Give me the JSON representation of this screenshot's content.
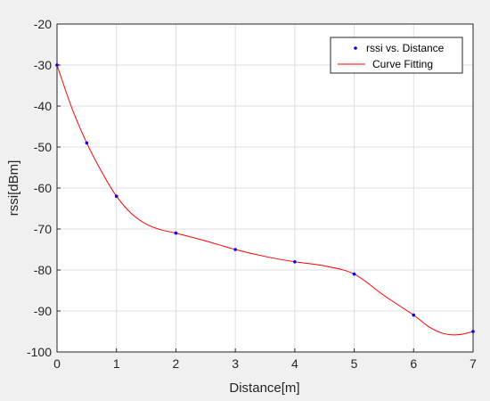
{
  "chart_data": {
    "type": "scatter",
    "xlabel": "Distance[m]",
    "ylabel": "rssi[dBm]",
    "xlim": [
      0,
      7
    ],
    "ylim": [
      -100,
      -20
    ],
    "xticks": [
      0,
      1,
      2,
      3,
      4,
      5,
      6,
      7
    ],
    "yticks": [
      -100,
      -90,
      -80,
      -70,
      -60,
      -50,
      -40,
      -30,
      -20
    ],
    "grid": true,
    "legend_position": "top-right",
    "series": [
      {
        "name": "rssi vs. Distance",
        "kind": "markers",
        "color": "#0000ff",
        "x": [
          0,
          0.5,
          1,
          2,
          3,
          4,
          5,
          6,
          7
        ],
        "y": [
          -30,
          -49,
          -62,
          -71,
          -75,
          -78,
          -81,
          -91,
          -95
        ]
      },
      {
        "name": "Curve Fitting",
        "kind": "line",
        "color": "#ff0000",
        "x": [
          0,
          0.25,
          0.5,
          0.75,
          1,
          1.25,
          1.5,
          1.75,
          2,
          2.5,
          3,
          3.5,
          4,
          4.5,
          5,
          5.5,
          6,
          6.25,
          6.5,
          6.75,
          7
        ],
        "y": [
          -30,
          -40.5,
          -49,
          -56,
          -62,
          -66.2,
          -68.8,
          -70.2,
          -71,
          -72.9,
          -75,
          -76.7,
          -78,
          -79,
          -81,
          -86.2,
          -91,
          -93.8,
          -95.5,
          -95.8,
          -95
        ]
      }
    ]
  }
}
